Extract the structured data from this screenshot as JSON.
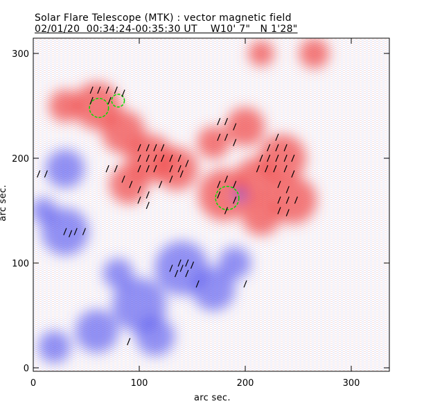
{
  "chart_data": {
    "type": "heatmap",
    "title": "Solar Flare Telescope (MTK) : vector magnetic field",
    "subtitle": "02/01/20  00:34:24-00:35:30 UT    W10' 7\"   N 1'28\"",
    "xlabel": "arc sec.",
    "ylabel": "arc sec.",
    "xlim": [
      0,
      336
    ],
    "ylim": [
      0,
      315
    ],
    "xticks": [
      0,
      100,
      200,
      300
    ],
    "yticks": [
      0,
      100,
      200,
      300
    ],
    "colors": {
      "positive": "#f05050",
      "negative": "#5a5af0",
      "contour": "#00dd00",
      "vector": "#000000"
    },
    "positive_regions": [
      [
        60,
        250,
        22
      ],
      [
        30,
        250,
        15
      ],
      [
        85,
        225,
        20
      ],
      [
        110,
        200,
        22
      ],
      [
        135,
        190,
        20
      ],
      [
        90,
        175,
        18
      ],
      [
        180,
        165,
        24
      ],
      [
        210,
        180,
        20
      ],
      [
        235,
        200,
        22
      ],
      [
        245,
        160,
        22
      ],
      [
        200,
        230,
        18
      ],
      [
        170,
        215,
        15
      ],
      [
        215,
        145,
        18
      ],
      [
        265,
        300,
        14
      ],
      [
        215,
        300,
        12
      ]
    ],
    "negative_regions": [
      [
        30,
        190,
        18
      ],
      [
        30,
        130,
        22
      ],
      [
        10,
        150,
        12
      ],
      [
        100,
        60,
        25
      ],
      [
        140,
        95,
        25
      ],
      [
        170,
        75,
        20
      ],
      [
        60,
        35,
        20
      ],
      [
        20,
        20,
        15
      ],
      [
        115,
        30,
        18
      ],
      [
        190,
        100,
        15
      ],
      [
        80,
        90,
        14
      ],
      [
        195,
        165,
        6
      ]
    ],
    "contours": [
      [
        62,
        248,
        9
      ],
      [
        80,
        255,
        6
      ],
      [
        183,
        162,
        11
      ]
    ],
    "vectors": [
      [
        55,
        265
      ],
      [
        62,
        265
      ],
      [
        70,
        265
      ],
      [
        78,
        265
      ],
      [
        85,
        262
      ],
      [
        55,
        255
      ],
      [
        72,
        255
      ],
      [
        100,
        210
      ],
      [
        108,
        210
      ],
      [
        115,
        210
      ],
      [
        122,
        210
      ],
      [
        100,
        200
      ],
      [
        108,
        200
      ],
      [
        115,
        200
      ],
      [
        122,
        200
      ],
      [
        130,
        200
      ],
      [
        138,
        200
      ],
      [
        145,
        195
      ],
      [
        100,
        190
      ],
      [
        108,
        190
      ],
      [
        115,
        190
      ],
      [
        130,
        190
      ],
      [
        138,
        190
      ],
      [
        70,
        190
      ],
      [
        78,
        190
      ],
      [
        85,
        180
      ],
      [
        92,
        175
      ],
      [
        100,
        170
      ],
      [
        108,
        165
      ],
      [
        100,
        160
      ],
      [
        108,
        155
      ],
      [
        120,
        175
      ],
      [
        130,
        180
      ],
      [
        140,
        185
      ],
      [
        175,
        235
      ],
      [
        182,
        235
      ],
      [
        190,
        230
      ],
      [
        175,
        220
      ],
      [
        182,
        220
      ],
      [
        190,
        215
      ],
      [
        175,
        175
      ],
      [
        182,
        180
      ],
      [
        190,
        175
      ],
      [
        175,
        165
      ],
      [
        190,
        160
      ],
      [
        182,
        150
      ],
      [
        230,
        220
      ],
      [
        222,
        210
      ],
      [
        230,
        210
      ],
      [
        238,
        210
      ],
      [
        215,
        200
      ],
      [
        222,
        200
      ],
      [
        230,
        200
      ],
      [
        238,
        200
      ],
      [
        245,
        200
      ],
      [
        212,
        190
      ],
      [
        220,
        190
      ],
      [
        228,
        190
      ],
      [
        238,
        190
      ],
      [
        245,
        185
      ],
      [
        232,
        175
      ],
      [
        240,
        170
      ],
      [
        232,
        160
      ],
      [
        240,
        160
      ],
      [
        248,
        160
      ],
      [
        232,
        150
      ],
      [
        240,
        148
      ],
      [
        30,
        130
      ],
      [
        35,
        128
      ],
      [
        40,
        130
      ],
      [
        48,
        130
      ],
      [
        130,
        95
      ],
      [
        135,
        90
      ],
      [
        140,
        95
      ],
      [
        145,
        90
      ],
      [
        138,
        100
      ],
      [
        145,
        100
      ],
      [
        150,
        98
      ],
      [
        155,
        80
      ],
      [
        200,
        80
      ],
      [
        90,
        25
      ],
      [
        5,
        185
      ],
      [
        12,
        185
      ]
    ]
  }
}
